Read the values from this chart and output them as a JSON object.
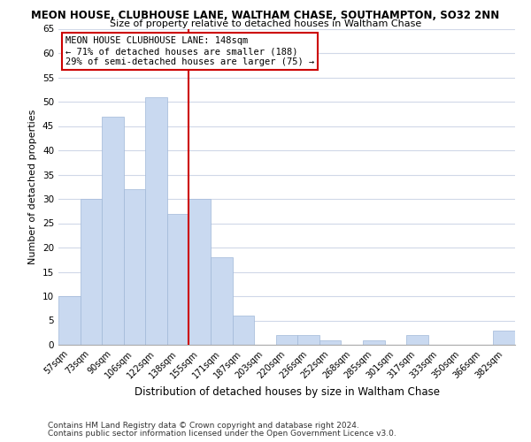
{
  "title": "MEON HOUSE, CLUBHOUSE LANE, WALTHAM CHASE, SOUTHAMPTON, SO32 2NN",
  "subtitle": "Size of property relative to detached houses in Waltham Chase",
  "xlabel": "Distribution of detached houses by size in Waltham Chase",
  "ylabel": "Number of detached properties",
  "bar_labels": [
    "57sqm",
    "73sqm",
    "90sqm",
    "106sqm",
    "122sqm",
    "138sqm",
    "155sqm",
    "171sqm",
    "187sqm",
    "203sqm",
    "220sqm",
    "236sqm",
    "252sqm",
    "268sqm",
    "285sqm",
    "301sqm",
    "317sqm",
    "333sqm",
    "350sqm",
    "366sqm",
    "382sqm"
  ],
  "bar_values": [
    10,
    30,
    47,
    32,
    51,
    27,
    30,
    18,
    6,
    0,
    2,
    2,
    1,
    0,
    1,
    0,
    2,
    0,
    0,
    0,
    3
  ],
  "bar_color": "#c9d9f0",
  "bar_edge_color": "#a0b8d8",
  "vline_x": 5.5,
  "vline_color": "#cc0000",
  "ylim": [
    0,
    65
  ],
  "yticks": [
    0,
    5,
    10,
    15,
    20,
    25,
    30,
    35,
    40,
    45,
    50,
    55,
    60,
    65
  ],
  "annotation_text": "MEON HOUSE CLUBHOUSE LANE: 148sqm\n← 71% of detached houses are smaller (188)\n29% of semi-detached houses are larger (75) →",
  "annotation_box_edge": "#cc0000",
  "footer1": "Contains HM Land Registry data © Crown copyright and database right 2024.",
  "footer2": "Contains public sector information licensed under the Open Government Licence v3.0.",
  "background_color": "#ffffff",
  "grid_color": "#d0d8e8"
}
